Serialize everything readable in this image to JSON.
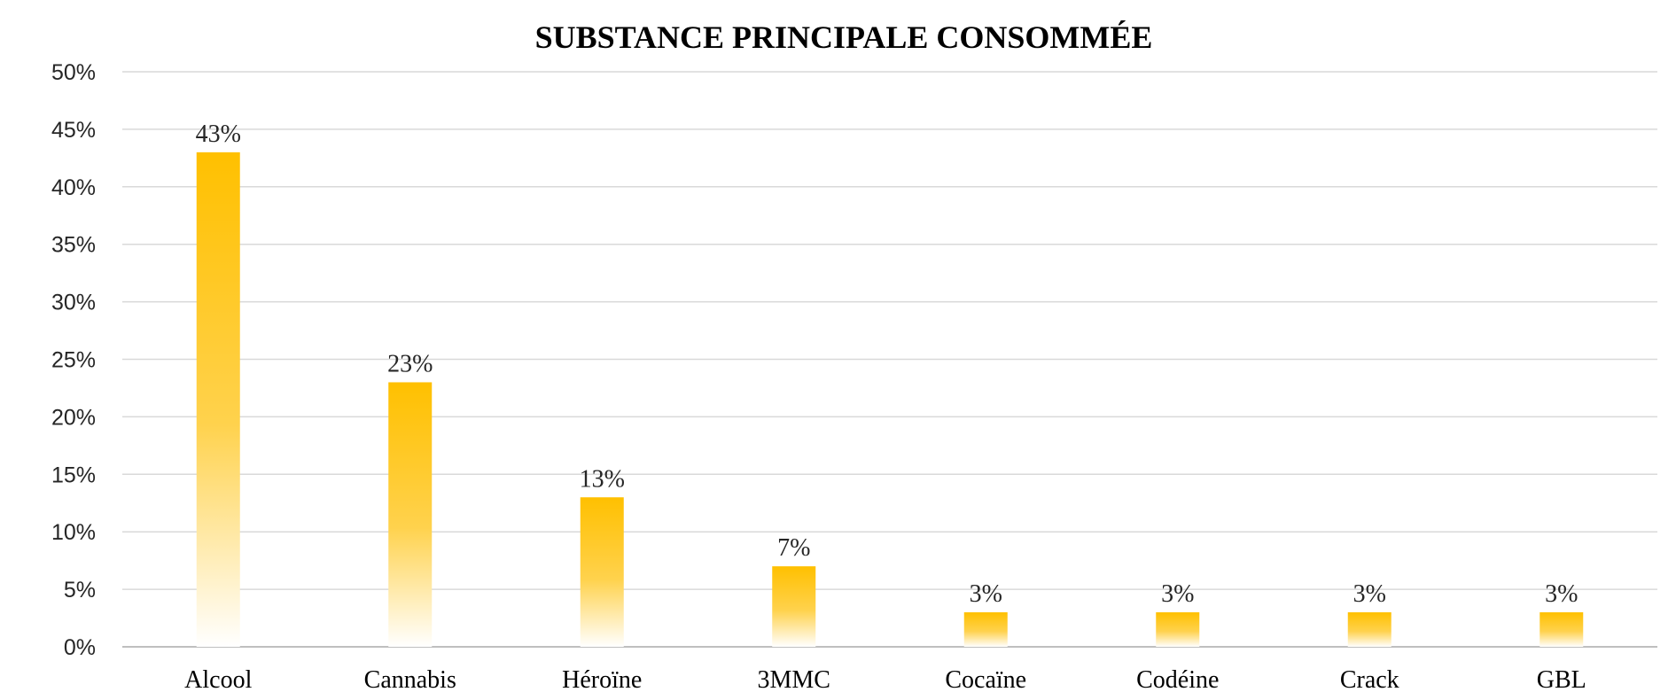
{
  "chart_data": {
    "type": "bar",
    "title": "SUBSTANCE PRINCIPALE CONSOMMÉE",
    "xlabel": "",
    "ylabel": "",
    "categories": [
      "Alcool",
      "Cannabis",
      "Héroïne",
      "3MMC",
      "Cocaïne",
      "Codéine",
      "Crack",
      "GBL"
    ],
    "values": [
      43,
      23,
      13,
      7,
      3,
      3,
      3,
      3
    ],
    "data_labels": [
      "43%",
      "23%",
      "13%",
      "7%",
      "3%",
      "3%",
      "3%",
      "3%"
    ],
    "ylim": [
      0,
      50
    ],
    "yticks": [
      0,
      5,
      10,
      15,
      20,
      25,
      30,
      35,
      40,
      45,
      50
    ],
    "ytick_labels": [
      "0%",
      "5%",
      "10%",
      "15%",
      "20%",
      "25%",
      "30%",
      "35%",
      "40%",
      "45%",
      "50%"
    ],
    "grid": true,
    "legend": "none",
    "bar_color": "#FFC000",
    "bar_fade_color": "#FFFFFF"
  }
}
